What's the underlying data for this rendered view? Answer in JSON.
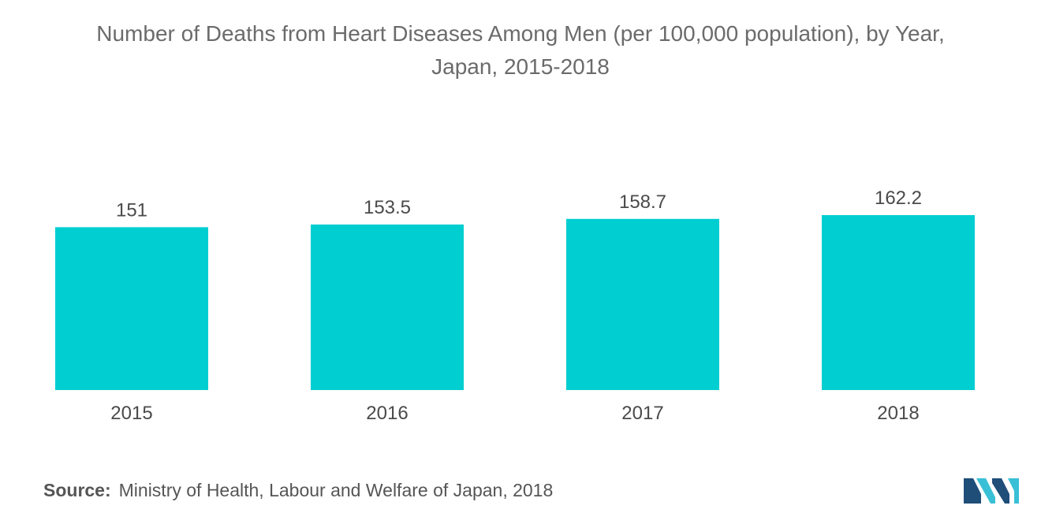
{
  "chart_data": {
    "type": "bar",
    "title": "Number of Deaths from Heart Diseases Among Men (per 100,000 population), by Year,",
    "subtitle": "Japan, 2015-2018",
    "categories": [
      "2015",
      "2016",
      "2017",
      "2018"
    ],
    "values": [
      151,
      153.5,
      158.7,
      162.2
    ],
    "value_labels": [
      "151",
      "153.5",
      "158.7",
      "162.2"
    ],
    "xlabel": "",
    "ylabel": "",
    "ylim": [
      0,
      162.2
    ],
    "grid": false,
    "legend": "none",
    "bar_color": "#00CED1"
  },
  "source": {
    "label": "Source:",
    "text": "Ministry of Health, Labour and Welfare of Japan, 2018"
  },
  "brand": {
    "logo_icon": "mordor-intelligence-logo-icon",
    "color_dark": "#1F4E79",
    "color_light": "#39C0D6"
  }
}
